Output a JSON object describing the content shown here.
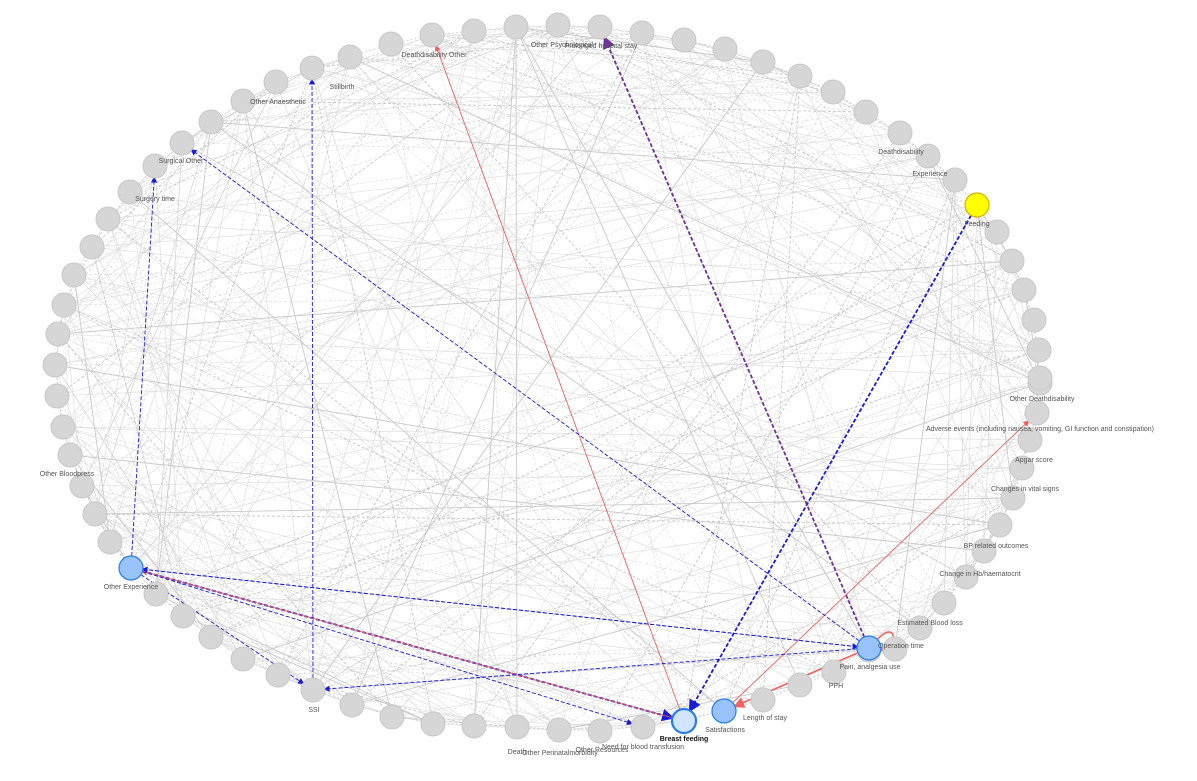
{
  "network": {
    "colors": {
      "background": "#ffffff",
      "node_gray": "#d6d6d6",
      "node_gray_stroke": "#c8c8c8",
      "edge_gray": "#cfcfcf",
      "node_blue": "#97c2fc",
      "node_blue_stroke": "#2b7ce9",
      "node_selected_fill": "#d2e5ff",
      "node_yellow": "#ffff00",
      "node_yellow_stroke": "#d8b400",
      "edge_blue": "#1a1adb",
      "edge_red": "#f06060",
      "edge_purple": "#7030a0",
      "label_text": "#555555"
    },
    "labels": [
      "Deathdisability Other",
      "Other Psychological",
      "Prolonged hospital stay",
      "Stillbirth",
      "Other Anaesthetic",
      "Surgical Other",
      "Surgery time",
      "Deathdisability",
      "Experience",
      "Feeding",
      "Other Deathdisability",
      "Adverse events (including nausea, vomiting, GI function and constipation)",
      "Apgar score",
      "Changes in vital signs",
      "BP related outcomes",
      "Change in Hb/haematocrit",
      "Estimated Blood loss",
      "Operation time",
      "Pain, analgesia use",
      "PPH",
      "Length of stay",
      "Satisfactions",
      "Breast feeding",
      "Need for blood transfusion",
      "Other Resources",
      "Other Perinatalmorbidity",
      "Death",
      "SSI",
      "Other Experience",
      "Other Bloodpress"
    ],
    "highlighted_nodes": [
      "Other Experience",
      "Pain, analgesia use",
      "Satisfactions",
      "Breast feeding",
      "Feeding"
    ],
    "selected_node": "Breast feeding",
    "edges": [
      {
        "from": "Feeding",
        "to": "Breast feeding",
        "color": "blue",
        "style": "dashed",
        "width": "thick"
      },
      {
        "from": "Other Experience",
        "to": "Breast feeding",
        "color": "blue",
        "style": "dashed",
        "width": "thick"
      },
      {
        "from": "Pain, analgesia use",
        "to": "Prolonged hospital stay",
        "color": "purple",
        "style": "dashed",
        "width": "thick"
      },
      {
        "from": "Breast feeding",
        "to": "Deathdisability Other",
        "color": "red",
        "style": "solid",
        "width": "thin"
      },
      {
        "from": "Satisfactions",
        "to": "Adverse events (including nausea, vomiting, GI function and constipation)",
        "color": "red",
        "style": "solid",
        "width": "thin"
      },
      {
        "from": "Breast feeding",
        "to": "Other Experience",
        "color": "red",
        "style": "solid",
        "width": "thin"
      },
      {
        "from": "Pain, analgesia use",
        "to": "Satisfactions",
        "color": "red",
        "style": "solid",
        "width": "medium"
      },
      {
        "from": "Pain, analgesia use",
        "to": "Other Experience",
        "color": "blue",
        "style": "dashed",
        "width": "thin"
      },
      {
        "from": "Other Experience",
        "to": "Surgery time",
        "color": "blue",
        "style": "dashed",
        "width": "thin"
      },
      {
        "from": "Pain, analgesia use",
        "to": "Surgical Other",
        "color": "blue",
        "style": "dashed",
        "width": "thin"
      },
      {
        "from": "Other Experience",
        "to": "SSI",
        "color": "blue",
        "style": "dashed",
        "width": "thin"
      },
      {
        "from": "Pain, analgesia use",
        "to": "SSI",
        "color": "blue",
        "style": "dashed",
        "width": "thin"
      },
      {
        "from": "Other Experience",
        "to": "Need for blood transfusion",
        "color": "blue",
        "style": "dashed",
        "width": "thin"
      },
      {
        "from": "SSI",
        "to": "Stillbirth",
        "color": "blue",
        "style": "dashed",
        "width": "thin"
      },
      {
        "from": "Other Experience",
        "to": "Pain, analgesia use",
        "color": "blue",
        "style": "dashed",
        "width": "thin"
      }
    ]
  }
}
